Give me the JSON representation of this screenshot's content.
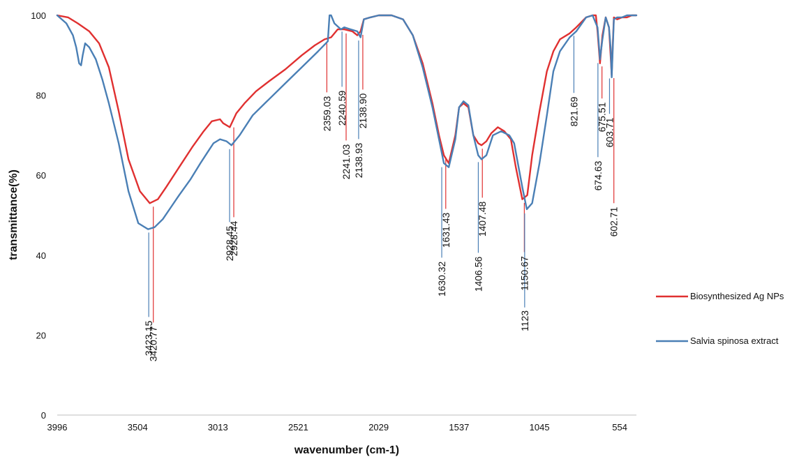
{
  "chart_data": {
    "type": "line",
    "title": "",
    "xlabel": "wavenumber (cm-1)",
    "ylabel": "transmittance(%)",
    "xlim": [
      3996,
      452
    ],
    "ylim": [
      0,
      100
    ],
    "x_ticks": [
      3996,
      3504,
      3013,
      2521,
      2029,
      1537,
      1045,
      554
    ],
    "y_ticks": [
      0,
      20,
      40,
      60,
      80,
      100
    ],
    "grid": false,
    "legend_position": "right",
    "series": [
      {
        "name": "Biosynthesized Ag NPs",
        "color": "#e03030",
        "x": [
          3996,
          3930,
          3870,
          3800,
          3740,
          3680,
          3620,
          3560,
          3490,
          3430,
          3380,
          3330,
          3250,
          3170,
          3100,
          3050,
          3000,
          2980,
          2940,
          2900,
          2850,
          2780,
          2700,
          2600,
          2500,
          2420,
          2360,
          2320,
          2280,
          2240,
          2190,
          2160,
          2140,
          2120,
          2080,
          2029,
          1950,
          1880,
          1820,
          1760,
          1700,
          1660,
          1630,
          1600,
          1560,
          1537,
          1510,
          1480,
          1450,
          1420,
          1400,
          1370,
          1340,
          1300,
          1260,
          1220,
          1190,
          1150,
          1120,
          1090,
          1045,
          1000,
          960,
          920,
          860,
          820,
          760,
          720,
          700,
          690,
          675,
          660,
          640,
          620,
          610,
          603,
          597,
          590,
          570,
          540,
          510,
          480,
          452
        ],
        "values": [
          100,
          99.5,
          98,
          96,
          93,
          87,
          76,
          64,
          56,
          53,
          54,
          57,
          62,
          67,
          71,
          73.5,
          74,
          73,
          72,
          75.5,
          78,
          81,
          83.5,
          86.5,
          90,
          92.5,
          94,
          94.5,
          96.5,
          96.5,
          96,
          95,
          96,
          99,
          99.5,
          100,
          100,
          99,
          95,
          88,
          78,
          70,
          65,
          63,
          70,
          77,
          78,
          77,
          70,
          68,
          67.5,
          68.5,
          70.5,
          72,
          71,
          69,
          62,
          54,
          55,
          65,
          76,
          86,
          91,
          94,
          95.5,
          97,
          99.5,
          100,
          100,
          96,
          88,
          95,
          99.5,
          97,
          90,
          85,
          92,
          99.5,
          99,
          99.5,
          99.5,
          100,
          100
        ]
      },
      {
        "name": "Salvia spinosa extract",
        "color": "#4a7fb5",
        "x": [
          3996,
          3940,
          3900,
          3880,
          3862,
          3850,
          3840,
          3825,
          3800,
          3760,
          3720,
          3680,
          3620,
          3560,
          3500,
          3440,
          3400,
          3350,
          3300,
          3250,
          3180,
          3120,
          3080,
          3040,
          3000,
          2960,
          2930,
          2880,
          2800,
          2700,
          2600,
          2500,
          2400,
          2340,
          2330,
          2320,
          2300,
          2260,
          2240,
          2200,
          2160,
          2140,
          2120,
          2080,
          2029,
          1950,
          1880,
          1820,
          1760,
          1700,
          1660,
          1630,
          1600,
          1560,
          1537,
          1510,
          1480,
          1450,
          1420,
          1400,
          1370,
          1330,
          1280,
          1230,
          1200,
          1150,
          1123,
          1090,
          1045,
          1000,
          960,
          920,
          860,
          820,
          760,
          720,
          690,
          675,
          660,
          640,
          620,
          610,
          603,
          597,
          590,
          570,
          540,
          510,
          480,
          452
        ],
        "values": [
          100,
          98,
          95,
          92,
          88,
          87.5,
          90,
          93,
          92,
          89,
          84,
          78,
          68,
          56,
          48,
          46.5,
          47,
          49,
          52,
          55,
          59,
          63,
          65.5,
          68,
          69,
          68.5,
          67.5,
          70,
          75,
          79,
          83,
          87,
          91,
          93.5,
          100,
          100,
          98,
          96.5,
          97,
          96.5,
          96,
          94.5,
          99,
          99.5,
          100,
          100,
          99,
          95,
          87,
          77,
          69,
          63,
          62,
          69,
          77,
          78.5,
          77.5,
          70,
          65,
          64,
          65,
          70,
          71,
          70,
          68,
          57,
          51.5,
          53,
          63,
          75,
          86,
          91,
          94.5,
          96,
          99.5,
          100,
          97,
          89,
          94,
          99.5,
          97,
          92,
          84.5,
          91,
          99,
          99.5,
          99.5,
          100,
          100,
          100
        ]
      }
    ],
    "annotations": [
      {
        "label": "3423.15",
        "x": 3423.15,
        "series": 1
      },
      {
        "label": "3420.77",
        "x": 3420.77,
        "series": 0
      },
      {
        "label": "2928.45",
        "x": 2928.45,
        "series": 1
      },
      {
        "label": "2928.44",
        "x": 2928.44,
        "series": 0
      },
      {
        "label": "2359.03",
        "x": 2359.03,
        "series": 0
      },
      {
        "label": "2241.03",
        "x": 2241.03,
        "series": 0
      },
      {
        "label": "2240.59",
        "x": 2240.59,
        "series": 1
      },
      {
        "label": "2138.93",
        "x": 2138.93,
        "series": 1
      },
      {
        "label": "2138.90",
        "x": 2138.9,
        "series": 0
      },
      {
        "label": "1631.43",
        "x": 1631.43,
        "series": 0
      },
      {
        "label": "1630.32",
        "x": 1630.32,
        "series": 1
      },
      {
        "label": "1407.48",
        "x": 1407.48,
        "series": 0
      },
      {
        "label": "1406.56",
        "x": 1406.56,
        "series": 1
      },
      {
        "label": "1150.67",
        "x": 1150.67,
        "series": 0
      },
      {
        "label": "1123",
        "x": 1123,
        "series": 1
      },
      {
        "label": "821.69",
        "x": 821.69,
        "series": 1
      },
      {
        "label": "675.51",
        "x": 675.51,
        "series": 0
      },
      {
        "label": "674.63",
        "x": 674.63,
        "series": 1
      },
      {
        "label": "603.71",
        "x": 603.71,
        "series": 1
      },
      {
        "label": "602.71",
        "x": 602.71,
        "series": 0
      }
    ]
  }
}
